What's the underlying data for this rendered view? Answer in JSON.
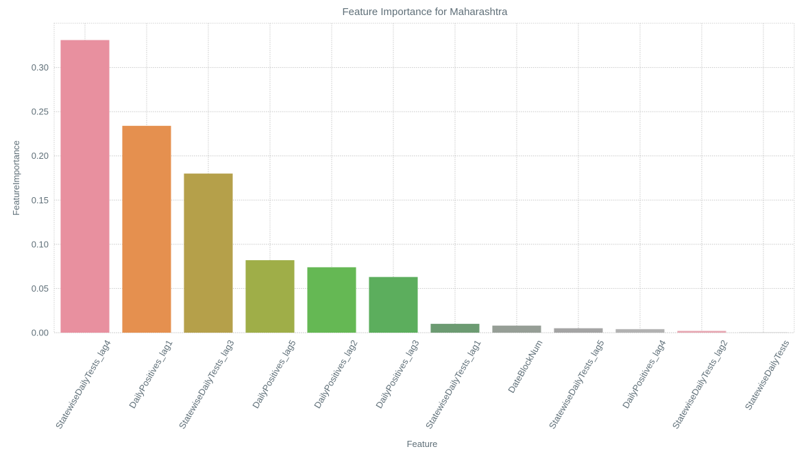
{
  "chart_data": {
    "type": "bar",
    "title": "Feature Importance for Maharashtra",
    "xlabel": "Feature",
    "ylabel": "FeatureImportance",
    "ylim": [
      0,
      0.35
    ],
    "yticks": [
      0.0,
      0.05,
      0.1,
      0.15,
      0.2,
      0.25,
      0.3
    ],
    "ytick_labels": [
      "0.00",
      "0.05",
      "0.10",
      "0.15",
      "0.20",
      "0.25",
      "0.30"
    ],
    "grid": true,
    "categories": [
      "StatewiseDailyTests_lag4",
      "DailyPositives_lag1",
      "StatewiseDailyTests_lag3",
      "DailyPositives_lag5",
      "DailyPositives_lag2",
      "DailyPositives_lag3",
      "StatewiseDailyTests_lag1",
      "DateBlockNum",
      "StatewiseDailyTests_lag5",
      "DailyPositives_lag4",
      "StatewiseDailyTests_lag2",
      "StatewiseDailyTests"
    ],
    "values": [
      0.331,
      0.234,
      0.18,
      0.082,
      0.074,
      0.063,
      0.01,
      0.008,
      0.005,
      0.004,
      0.002,
      0.0005
    ],
    "colors": [
      "#e8909f",
      "#e5904f",
      "#b5a04a",
      "#9fae48",
      "#65b854",
      "#5cae5d",
      "#6c9b72",
      "#969e96",
      "#a4a4a4",
      "#b2b2b2",
      "#e6a5b0",
      "#cccccc"
    ]
  }
}
